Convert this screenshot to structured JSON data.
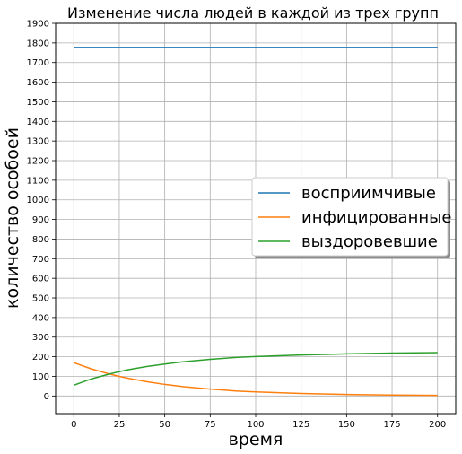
{
  "chart_data": {
    "type": "line",
    "title": "Изменение числа людей в каждой из трех групп",
    "xlabel": "время",
    "ylabel": "количество особоей",
    "xlim": [
      -10,
      210
    ],
    "ylim": [
      -90,
      1900
    ],
    "xticks": [
      0,
      25,
      50,
      75,
      100,
      125,
      150,
      175,
      200
    ],
    "yticks": [
      0,
      100,
      200,
      300,
      400,
      500,
      600,
      700,
      800,
      900,
      1000,
      1100,
      1200,
      1300,
      1400,
      1500,
      1600,
      1700,
      1800,
      1900
    ],
    "grid": true,
    "legend_position": "center-right",
    "series": [
      {
        "name": "восприимчивые",
        "color": "#1f77b4",
        "x": [
          0,
          200
        ],
        "y": [
          1777,
          1777
        ]
      },
      {
        "name": "инфицированные",
        "color": "#ff7f0e",
        "x": [
          0,
          10,
          20,
          25,
          30,
          40,
          50,
          60,
          75,
          90,
          100,
          125,
          150,
          175,
          200
        ],
        "y": [
          170,
          137,
          111,
          100,
          90,
          73,
          59,
          48,
          35,
          25,
          21,
          13,
          8,
          5,
          3
        ]
      },
      {
        "name": "выздоровевшие",
        "color": "#2ca02c",
        "x": [
          0,
          10,
          20,
          25,
          30,
          40,
          50,
          60,
          75,
          90,
          100,
          125,
          150,
          175,
          200
        ],
        "y": [
          55,
          88,
          113,
          124,
          134,
          150,
          163,
          174,
          187,
          197,
          201,
          209,
          215,
          219,
          221
        ]
      }
    ]
  }
}
